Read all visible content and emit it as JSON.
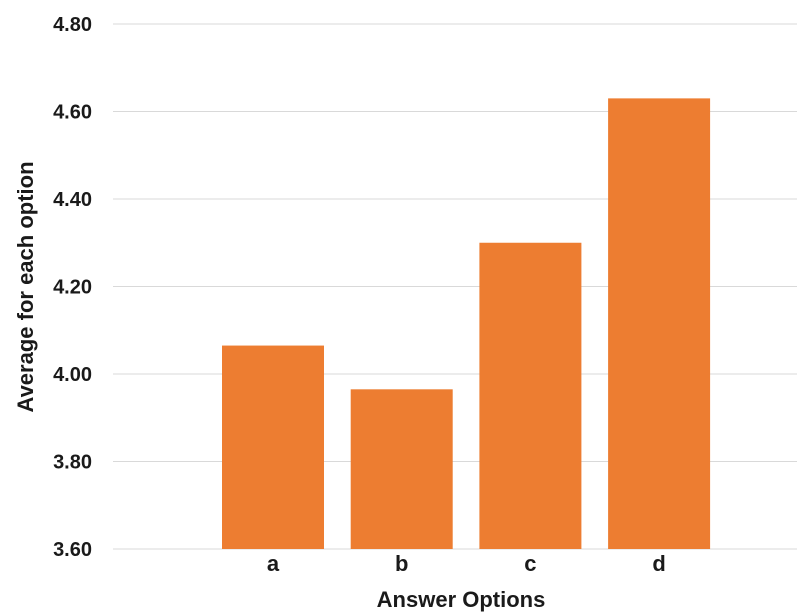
{
  "chart_data": {
    "type": "bar",
    "categories": [
      "a",
      "b",
      "c",
      "d"
    ],
    "values": [
      4.065,
      3.965,
      4.3,
      4.63
    ],
    "xlabel": "Answer Options",
    "ylabel": "Average for each option",
    "ylim": [
      3.6,
      4.8
    ],
    "yticks": [
      3.6,
      3.8,
      4.0,
      4.2,
      4.4,
      4.6,
      4.8
    ],
    "ytick_labels": [
      "3.60",
      "3.80",
      "4.00",
      "4.20",
      "4.40",
      "4.60",
      "4.80"
    ],
    "grid": true,
    "bar_color": "#ED7D31",
    "legend": "none"
  }
}
